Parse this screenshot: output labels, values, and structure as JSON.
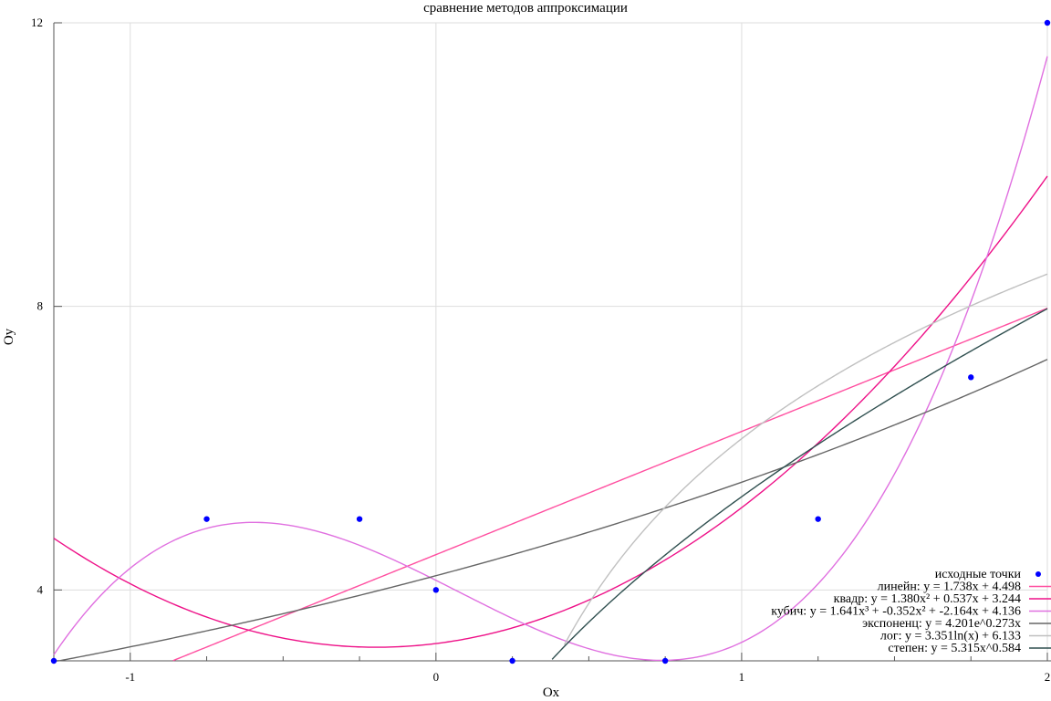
{
  "chart_data": {
    "type": "scatter",
    "title": "сравнение методов аппроксимации",
    "xlabel": "Ox",
    "ylabel": "Oy",
    "xlim": [
      -1.25,
      2
    ],
    "ylim": [
      3,
      12
    ],
    "x_ticks": [
      -1,
      0,
      1,
      2
    ],
    "x_tick_labels": [
      "-1",
      "0",
      "1",
      "2"
    ],
    "y_ticks": [
      4,
      8,
      12
    ],
    "y_tick_labels": [
      "4",
      "8",
      "12"
    ],
    "grid": true,
    "legend_position": "bottom-right",
    "points": {
      "name": "исходные точки",
      "color": "#0000ff",
      "x": [
        -1.25,
        -0.75,
        -0.25,
        0,
        0.25,
        0.75,
        1.25,
        1.75,
        2
      ],
      "y": [
        3,
        5,
        5,
        4,
        3,
        3,
        5,
        7,
        12
      ]
    },
    "series": [
      {
        "name": "линейн: y = 1.738x + 4.498",
        "color": "#ff4fa0",
        "kind": "linear",
        "coef": [
          1.738,
          4.498
        ],
        "xrange": [
          -0.86,
          2
        ]
      },
      {
        "name": "квадр: y = 1.380x² + 0.537x + 3.244",
        "color": "#ee1188",
        "kind": "quadratic",
        "coef": [
          1.38,
          0.537,
          3.244
        ],
        "xrange": [
          -1.25,
          2
        ]
      },
      {
        "name": "кубич: y = 1.641x³ + -0.352x² + -2.164x + 4.136",
        "color": "#e070e0",
        "kind": "cubic",
        "coef": [
          1.641,
          -0.352,
          -2.164,
          4.136
        ],
        "xrange": [
          -1.25,
          2
        ]
      },
      {
        "name": "экспоненц: y = 4.201e^0.273x",
        "color": "#666666",
        "kind": "exponential",
        "coef": [
          4.201,
          0.273
        ],
        "xrange": [
          -1.25,
          2
        ]
      },
      {
        "name": "лог: y = 3.351ln(x) + 6.133",
        "color": "#c0c0c0",
        "kind": "logarithmic",
        "coef": [
          3.351,
          6.133
        ],
        "xrange": [
          0.42,
          2
        ]
      },
      {
        "name": "степен: y = 5.315x^0.584",
        "color": "#2f4f4f",
        "kind": "power",
        "coef": [
          5.315,
          0.584
        ],
        "xrange": [
          0.38,
          2
        ]
      }
    ]
  }
}
